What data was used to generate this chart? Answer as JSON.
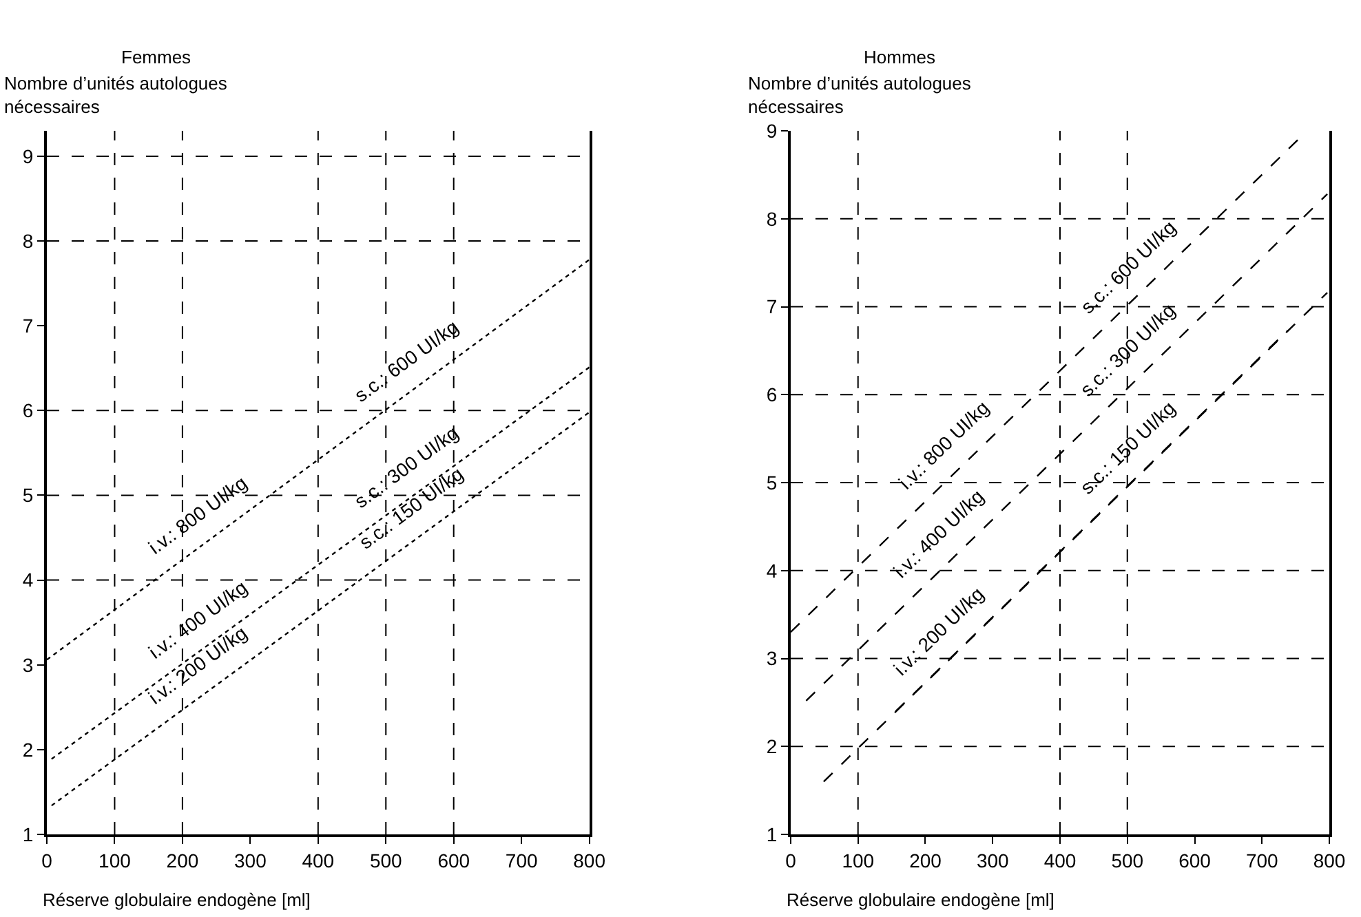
{
  "chart_data": [
    {
      "type": "line",
      "title": "Femmes",
      "ylabel": "Nombre d’unités autologues\nnécessaires",
      "xlabel": "Réserve globulaire endogène [ml]",
      "line_style": "dotted",
      "grid": false,
      "xlim": [
        0,
        800
      ],
      "xticks": [
        0,
        100,
        200,
        300,
        400,
        500,
        600,
        700,
        800
      ],
      "ylim": [
        1,
        9.3
      ],
      "yticks": [
        1,
        2,
        3,
        4,
        5,
        6,
        7,
        8,
        9
      ],
      "series": [
        {
          "color": "#000000",
          "x": [
            0,
            800
          ],
          "values": [
            3.06,
            7.78
          ]
        },
        {
          "color": "#000000",
          "x": [
            7,
            800
          ],
          "values": [
            1.89,
            6.51
          ]
        },
        {
          "color": "#000000",
          "x": [
            7,
            800
          ],
          "values": [
            1.34,
            5.98
          ]
        }
      ],
      "ref_lines": [
        {
          "axis": "x",
          "value": 100,
          "color": "#000000",
          "line_style": "dashed"
        },
        {
          "axis": "x",
          "value": 200,
          "color": "#000000",
          "line_style": "dashed"
        },
        {
          "axis": "x",
          "value": 400,
          "color": "#000000",
          "line_style": "dashed"
        },
        {
          "axis": "x",
          "value": 500,
          "color": "#000000",
          "line_style": "dashed"
        },
        {
          "axis": "x",
          "value": 600,
          "color": "#000000",
          "line_style": "dashed"
        },
        {
          "axis": "y",
          "value": 4,
          "color": "#000000",
          "line_style": "dashed"
        },
        {
          "axis": "y",
          "value": 5,
          "color": "#000000",
          "line_style": "dashed"
        },
        {
          "axis": "y",
          "value": 6,
          "color": "#000000",
          "line_style": "dashed"
        },
        {
          "axis": "y",
          "value": 8,
          "color": "#000000",
          "line_style": "dashed"
        },
        {
          "axis": "y",
          "value": 9,
          "color": "#000000",
          "line_style": "dashed"
        }
      ],
      "annotations": [
        {
          "text": "i.v.: 800 UI/kg",
          "x": 246,
          "y": 4.51
        },
        {
          "text": "s.c.: 600 UI/kg",
          "x": 554,
          "y": 6.33
        },
        {
          "text": "i.v.: 400 UI/kg",
          "x": 246,
          "y": 3.28
        },
        {
          "text": "s.c.: 300 UI/kg",
          "x": 554,
          "y": 5.08
        },
        {
          "text": "i.v.: 200 UI/kg",
          "x": 246,
          "y": 2.74
        },
        {
          "text": "s.c.: 150 UI/kg",
          "x": 561,
          "y": 4.58
        }
      ]
    },
    {
      "type": "line",
      "title": "Hommes",
      "ylabel": "Nombre d’unités autologues\nnécessaires",
      "xlabel": "Réserve globulaire endogène [ml]",
      "line_style": "dashed",
      "grid": false,
      "xlim": [
        0,
        800
      ],
      "xticks": [
        0,
        100,
        200,
        300,
        400,
        500,
        600,
        700,
        800
      ],
      "ylim": [
        1,
        9
      ],
      "yticks": [
        1,
        2,
        3,
        4,
        5,
        6,
        7,
        8,
        9
      ],
      "series": [
        {
          "color": "#000000",
          "x": [
            0,
            755
          ],
          "values": [
            3.3,
            8.91
          ]
        },
        {
          "color": "#000000",
          "x": [
            23,
            797
          ],
          "values": [
            2.52,
            8.28
          ]
        },
        {
          "color": "#000000",
          "x": [
            49,
            797
          ],
          "values": [
            1.6,
            7.16
          ]
        },
        {
          "color": "#000000",
          "x": [
            156,
            738
          ],
          "values": [
            2.4,
            6.73
          ]
        }
      ],
      "ref_lines": [
        {
          "axis": "x",
          "value": 100,
          "color": "#000000",
          "line_style": "dashed"
        },
        {
          "axis": "x",
          "value": 400,
          "color": "#000000",
          "line_style": "dashed"
        },
        {
          "axis": "x",
          "value": 500,
          "color": "#000000",
          "line_style": "dashed"
        },
        {
          "axis": "y",
          "value": 2,
          "color": "#000000",
          "line_style": "dashed"
        },
        {
          "axis": "y",
          "value": 3,
          "color": "#000000",
          "line_style": "dashed"
        },
        {
          "axis": "y",
          "value": 4,
          "color": "#000000",
          "line_style": "dashed"
        },
        {
          "axis": "y",
          "value": 5,
          "color": "#000000",
          "line_style": "dashed"
        },
        {
          "axis": "y",
          "value": 6,
          "color": "#000000",
          "line_style": "dashed"
        },
        {
          "axis": "y",
          "value": 7,
          "color": "#000000",
          "line_style": "dashed"
        },
        {
          "axis": "y",
          "value": 8,
          "color": "#000000",
          "line_style": "dashed"
        }
      ],
      "annotations": [
        {
          "text": "i.v.: 800 UI/kg",
          "x": 256,
          "y": 5.2
        },
        {
          "text": "s.c.: 600 UI/kg",
          "x": 529,
          "y": 7.23
        },
        {
          "text": "i.v.: 400 UI/kg",
          "x": 249,
          "y": 4.2
        },
        {
          "text": "s.c.: 300 UI/kg",
          "x": 529,
          "y": 6.28
        },
        {
          "text": "i.v.: 200 UI/kg",
          "x": 249,
          "y": 3.09
        },
        {
          "text": "s.c.: 150 UI/kg",
          "x": 529,
          "y": 5.17
        }
      ]
    }
  ]
}
